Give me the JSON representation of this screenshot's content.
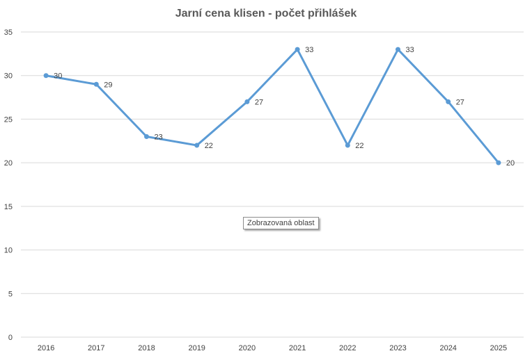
{
  "chart_data": {
    "type": "line",
    "title": "Jarní cena klisen - počet přihlášek",
    "categories": [
      "2016",
      "2017",
      "2018",
      "2019",
      "2020",
      "2021",
      "2022",
      "2023",
      "2024",
      "2025"
    ],
    "series": [
      {
        "values": [
          30,
          29,
          23,
          22,
          27,
          33,
          22,
          33,
          27,
          20
        ],
        "color": "#5b9bd5"
      }
    ],
    "ylim": [
      0,
      35
    ],
    "yticks": [
      0,
      5,
      10,
      15,
      20,
      25,
      30,
      35
    ],
    "grid": true,
    "data_labels": true,
    "gridline_color": "#d9d9d9"
  },
  "tooltip": {
    "text": "Zobrazovaná oblast"
  }
}
